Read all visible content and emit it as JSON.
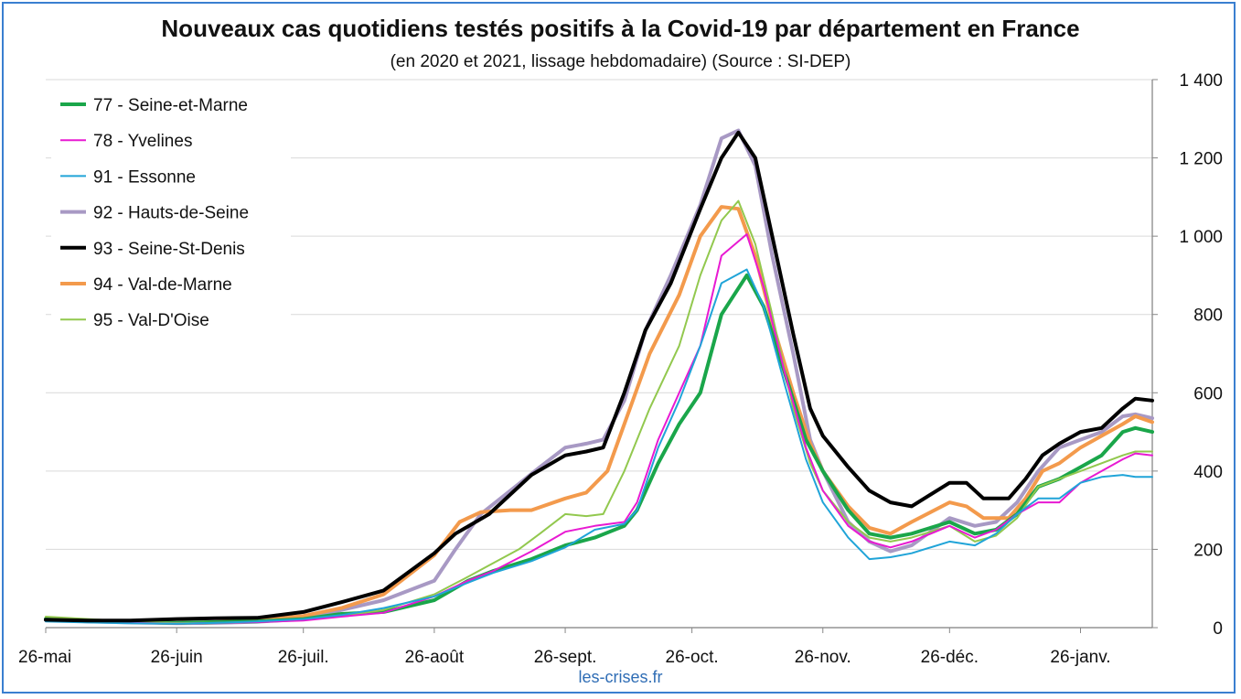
{
  "chart_data": {
    "type": "line",
    "title": "Nouveaux cas quotidiens testés positifs à la Covid-19 par département en France",
    "subtitle": "(en 2020 et 2021, lissage hebdomadaire) (Source : SI-DEP)",
    "source_url": "les-crises.fr",
    "x_tick_labels": [
      "26-mai",
      "26-juin",
      "26-juil.",
      "26-août",
      "26-sept.",
      "26-oct.",
      "26-nov.",
      "26-déc.",
      "26-janv."
    ],
    "x_tick_days": [
      0,
      31,
      61,
      92,
      123,
      153,
      184,
      214,
      245
    ],
    "xlim_days": [
      0,
      262
    ],
    "y_tick_labels": [
      "0",
      "200",
      "400",
      "600",
      "800",
      "1 000",
      "1 200",
      "1 400"
    ],
    "y_ticks": [
      0,
      200,
      400,
      600,
      800,
      1000,
      1200,
      1400
    ],
    "ylim": [
      0,
      1400
    ],
    "y_axis_side": "right",
    "grid": "horizontal",
    "legend_position": "top-left",
    "series": [
      {
        "name": "77 - Seine-et-Marne",
        "color": "#1aa64a",
        "width": 4,
        "points": [
          [
            0,
            22
          ],
          [
            10,
            18
          ],
          [
            20,
            14
          ],
          [
            31,
            12
          ],
          [
            40,
            14
          ],
          [
            50,
            16
          ],
          [
            61,
            22
          ],
          [
            70,
            35
          ],
          [
            80,
            40
          ],
          [
            92,
            70
          ],
          [
            100,
            120
          ],
          [
            106,
            145
          ],
          [
            115,
            175
          ],
          [
            123,
            210
          ],
          [
            130,
            230
          ],
          [
            137,
            260
          ],
          [
            140,
            300
          ],
          [
            145,
            420
          ],
          [
            150,
            520
          ],
          [
            155,
            600
          ],
          [
            160,
            800
          ],
          [
            166,
            900
          ],
          [
            170,
            820
          ],
          [
            175,
            650
          ],
          [
            180,
            480
          ],
          [
            184,
            400
          ],
          [
            190,
            300
          ],
          [
            195,
            240
          ],
          [
            200,
            230
          ],
          [
            205,
            240
          ],
          [
            214,
            270
          ],
          [
            220,
            240
          ],
          [
            225,
            250
          ],
          [
            230,
            290
          ],
          [
            235,
            360
          ],
          [
            240,
            380
          ],
          [
            245,
            410
          ],
          [
            250,
            440
          ],
          [
            255,
            500
          ],
          [
            258,
            510
          ],
          [
            262,
            500
          ]
        ]
      },
      {
        "name": "78 - Yvelines",
        "color": "#e81ad2",
        "width": 2,
        "points": [
          [
            0,
            18
          ],
          [
            10,
            15
          ],
          [
            20,
            12
          ],
          [
            31,
            10
          ],
          [
            40,
            12
          ],
          [
            50,
            14
          ],
          [
            61,
            18
          ],
          [
            70,
            28
          ],
          [
            80,
            38
          ],
          [
            92,
            80
          ],
          [
            100,
            120
          ],
          [
            106,
            145
          ],
          [
            115,
            195
          ],
          [
            123,
            245
          ],
          [
            130,
            260
          ],
          [
            137,
            270
          ],
          [
            140,
            320
          ],
          [
            145,
            480
          ],
          [
            150,
            600
          ],
          [
            155,
            720
          ],
          [
            160,
            950
          ],
          [
            166,
            1005
          ],
          [
            170,
            870
          ],
          [
            175,
            650
          ],
          [
            180,
            460
          ],
          [
            184,
            350
          ],
          [
            190,
            260
          ],
          [
            195,
            220
          ],
          [
            200,
            205
          ],
          [
            205,
            220
          ],
          [
            214,
            260
          ],
          [
            220,
            230
          ],
          [
            225,
            250
          ],
          [
            230,
            290
          ],
          [
            235,
            320
          ],
          [
            240,
            320
          ],
          [
            245,
            370
          ],
          [
            250,
            400
          ],
          [
            255,
            430
          ],
          [
            258,
            445
          ],
          [
            262,
            440
          ]
        ]
      },
      {
        "name": "91 - Essonne",
        "color": "#20a4d8",
        "width": 2,
        "points": [
          [
            0,
            16
          ],
          [
            10,
            13
          ],
          [
            20,
            11
          ],
          [
            31,
            10
          ],
          [
            40,
            12
          ],
          [
            50,
            16
          ],
          [
            61,
            22
          ],
          [
            70,
            32
          ],
          [
            80,
            50
          ],
          [
            92,
            80
          ],
          [
            100,
            115
          ],
          [
            106,
            140
          ],
          [
            115,
            170
          ],
          [
            123,
            205
          ],
          [
            130,
            250
          ],
          [
            137,
            265
          ],
          [
            140,
            300
          ],
          [
            145,
            460
          ],
          [
            150,
            580
          ],
          [
            155,
            720
          ],
          [
            160,
            880
          ],
          [
            166,
            915
          ],
          [
            170,
            820
          ],
          [
            175,
            620
          ],
          [
            180,
            430
          ],
          [
            184,
            320
          ],
          [
            190,
            230
          ],
          [
            195,
            175
          ],
          [
            200,
            180
          ],
          [
            205,
            190
          ],
          [
            214,
            220
          ],
          [
            220,
            210
          ],
          [
            225,
            240
          ],
          [
            230,
            290
          ],
          [
            235,
            330
          ],
          [
            240,
            330
          ],
          [
            245,
            370
          ],
          [
            250,
            385
          ],
          [
            255,
            390
          ],
          [
            258,
            385
          ],
          [
            262,
            385
          ]
        ]
      },
      {
        "name": "92 - Hauts-de-Seine",
        "color": "#a899c4",
        "width": 4,
        "points": [
          [
            0,
            20
          ],
          [
            10,
            16
          ],
          [
            20,
            13
          ],
          [
            31,
            11
          ],
          [
            40,
            12
          ],
          [
            50,
            15
          ],
          [
            61,
            22
          ],
          [
            70,
            45
          ],
          [
            80,
            70
          ],
          [
            92,
            120
          ],
          [
            97,
            200
          ],
          [
            103,
            290
          ],
          [
            110,
            350
          ],
          [
            117,
            410
          ],
          [
            123,
            460
          ],
          [
            128,
            470
          ],
          [
            132,
            480
          ],
          [
            137,
            580
          ],
          [
            142,
            760
          ],
          [
            148,
            900
          ],
          [
            155,
            1080
          ],
          [
            160,
            1250
          ],
          [
            164,
            1270
          ],
          [
            168,
            1180
          ],
          [
            172,
            950
          ],
          [
            177,
            700
          ],
          [
            181,
            480
          ],
          [
            184,
            400
          ],
          [
            190,
            270
          ],
          [
            195,
            220
          ],
          [
            200,
            195
          ],
          [
            205,
            210
          ],
          [
            214,
            280
          ],
          [
            220,
            260
          ],
          [
            225,
            270
          ],
          [
            230,
            320
          ],
          [
            235,
            400
          ],
          [
            240,
            460
          ],
          [
            245,
            480
          ],
          [
            250,
            500
          ],
          [
            255,
            540
          ],
          [
            258,
            545
          ],
          [
            262,
            535
          ]
        ]
      },
      {
        "name": "93 - Seine-St-Denis",
        "color": "#000000",
        "width": 4,
        "points": [
          [
            0,
            20
          ],
          [
            10,
            18
          ],
          [
            20,
            18
          ],
          [
            31,
            22
          ],
          [
            40,
            24
          ],
          [
            50,
            25
          ],
          [
            61,
            40
          ],
          [
            70,
            65
          ],
          [
            80,
            95
          ],
          [
            92,
            190
          ],
          [
            97,
            240
          ],
          [
            105,
            290
          ],
          [
            110,
            340
          ],
          [
            115,
            390
          ],
          [
            123,
            440
          ],
          [
            128,
            450
          ],
          [
            132,
            460
          ],
          [
            137,
            600
          ],
          [
            142,
            760
          ],
          [
            148,
            880
          ],
          [
            155,
            1070
          ],
          [
            160,
            1200
          ],
          [
            164,
            1265
          ],
          [
            168,
            1200
          ],
          [
            172,
            1000
          ],
          [
            177,
            750
          ],
          [
            181,
            560
          ],
          [
            184,
            490
          ],
          [
            190,
            410
          ],
          [
            195,
            350
          ],
          [
            200,
            320
          ],
          [
            205,
            310
          ],
          [
            214,
            370
          ],
          [
            218,
            370
          ],
          [
            222,
            330
          ],
          [
            228,
            330
          ],
          [
            232,
            380
          ],
          [
            236,
            440
          ],
          [
            240,
            470
          ],
          [
            245,
            500
          ],
          [
            250,
            510
          ],
          [
            255,
            560
          ],
          [
            258,
            585
          ],
          [
            262,
            580
          ]
        ]
      },
      {
        "name": "94 - Val-de-Marne",
        "color": "#f39a4c",
        "width": 4,
        "points": [
          [
            0,
            22
          ],
          [
            10,
            17
          ],
          [
            20,
            14
          ],
          [
            31,
            12
          ],
          [
            40,
            14
          ],
          [
            50,
            18
          ],
          [
            61,
            30
          ],
          [
            70,
            50
          ],
          [
            80,
            85
          ],
          [
            92,
            185
          ],
          [
            98,
            270
          ],
          [
            103,
            295
          ],
          [
            110,
            300
          ],
          [
            115,
            300
          ],
          [
            123,
            330
          ],
          [
            128,
            345
          ],
          [
            133,
            400
          ],
          [
            138,
            550
          ],
          [
            143,
            700
          ],
          [
            150,
            850
          ],
          [
            155,
            1000
          ],
          [
            160,
            1075
          ],
          [
            164,
            1070
          ],
          [
            168,
            950
          ],
          [
            172,
            780
          ],
          [
            177,
            600
          ],
          [
            181,
            470
          ],
          [
            184,
            400
          ],
          [
            190,
            310
          ],
          [
            195,
            255
          ],
          [
            200,
            240
          ],
          [
            205,
            270
          ],
          [
            214,
            320
          ],
          [
            218,
            310
          ],
          [
            222,
            280
          ],
          [
            228,
            280
          ],
          [
            232,
            330
          ],
          [
            236,
            400
          ],
          [
            240,
            420
          ],
          [
            245,
            460
          ],
          [
            250,
            490
          ],
          [
            255,
            520
          ],
          [
            258,
            540
          ],
          [
            262,
            525
          ]
        ]
      },
      {
        "name": "95 - Val-D'Oise",
        "color": "#92c84e",
        "width": 2,
        "points": [
          [
            0,
            28
          ],
          [
            10,
            22
          ],
          [
            20,
            16
          ],
          [
            31,
            12
          ],
          [
            40,
            12
          ],
          [
            50,
            15
          ],
          [
            61,
            20
          ],
          [
            70,
            30
          ],
          [
            80,
            45
          ],
          [
            92,
            85
          ],
          [
            100,
            130
          ],
          [
            106,
            165
          ],
          [
            112,
            200
          ],
          [
            117,
            240
          ],
          [
            123,
            290
          ],
          [
            128,
            285
          ],
          [
            132,
            290
          ],
          [
            137,
            400
          ],
          [
            143,
            560
          ],
          [
            150,
            720
          ],
          [
            155,
            900
          ],
          [
            160,
            1040
          ],
          [
            164,
            1090
          ],
          [
            168,
            980
          ],
          [
            172,
            800
          ],
          [
            177,
            560
          ],
          [
            181,
            420
          ],
          [
            184,
            350
          ],
          [
            190,
            270
          ],
          [
            195,
            230
          ],
          [
            200,
            220
          ],
          [
            205,
            230
          ],
          [
            214,
            260
          ],
          [
            220,
            220
          ],
          [
            225,
            235
          ],
          [
            230,
            280
          ],
          [
            235,
            360
          ],
          [
            240,
            380
          ],
          [
            245,
            400
          ],
          [
            250,
            420
          ],
          [
            255,
            440
          ],
          [
            258,
            450
          ],
          [
            262,
            450
          ]
        ]
      }
    ]
  }
}
